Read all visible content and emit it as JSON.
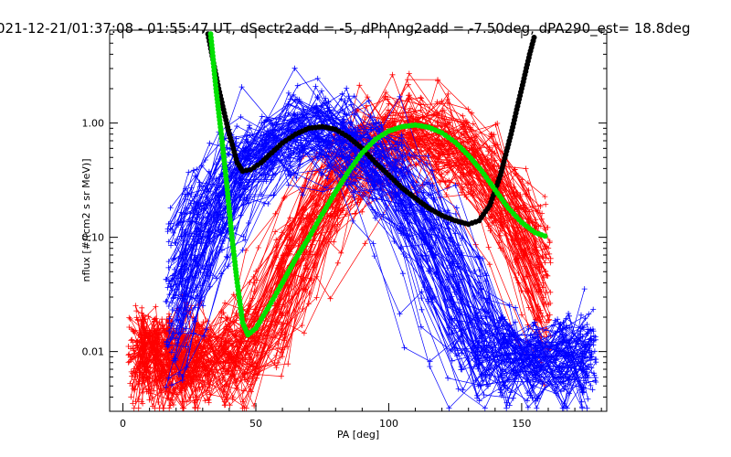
{
  "chart_data": {
    "type": "line",
    "title": "021-12-21/01:37:08 - 01:55:47 UT, dSectr2add = -5, dPhAng2add = -7.50deg, dPA290_est=  18.8deg",
    "xlabel": "PA [deg]",
    "ylabel": "nflux [#/(cm2 s sr MeV)]",
    "xlim": [
      -5,
      182
    ],
    "ylim": [
      0.003,
      6.5
    ],
    "y_scale": "log",
    "grid": false,
    "x_ticks": [
      {
        "value": 0,
        "label": "0"
      },
      {
        "value": 50,
        "label": "50"
      },
      {
        "value": 100,
        "label": "100"
      },
      {
        "value": 150,
        "label": "150"
      }
    ],
    "y_ticks": [
      {
        "value": 0.01,
        "label": "0.01"
      },
      {
        "value": 0.1,
        "label": "0.10"
      },
      {
        "value": 1.0,
        "label": "1.00"
      }
    ],
    "colors": {
      "blue": "#0000ff",
      "red": "#ff0000",
      "black": "#000000",
      "green": "#00e000"
    },
    "series": [
      {
        "color": "black",
        "style": "thick-dots",
        "x": [
          32,
          36,
          40,
          43,
          45,
          48,
          52,
          56,
          60,
          65,
          70,
          75,
          80,
          85,
          90,
          95,
          100,
          105,
          110,
          115,
          120,
          125,
          130,
          134,
          138,
          142,
          146,
          150,
          153,
          155
        ],
        "y": [
          6.0,
          2.0,
          0.8,
          0.45,
          0.38,
          0.39,
          0.45,
          0.55,
          0.67,
          0.8,
          0.9,
          0.93,
          0.88,
          0.75,
          0.6,
          0.45,
          0.35,
          0.27,
          0.22,
          0.18,
          0.155,
          0.14,
          0.13,
          0.14,
          0.19,
          0.35,
          0.8,
          2.0,
          4.0,
          6.0
        ]
      },
      {
        "color": "green",
        "style": "thick-dots",
        "x": [
          33,
          35,
          37,
          39,
          41,
          43,
          45,
          47,
          50,
          55,
          60,
          65,
          70,
          75,
          80,
          85,
          90,
          95,
          100,
          105,
          110,
          115,
          120,
          125,
          130,
          135,
          140,
          145,
          150,
          155,
          160
        ],
        "y": [
          6.0,
          2.0,
          0.8,
          0.3,
          0.1,
          0.04,
          0.018,
          0.014,
          0.016,
          0.025,
          0.04,
          0.065,
          0.1,
          0.16,
          0.25,
          0.38,
          0.55,
          0.72,
          0.85,
          0.93,
          0.96,
          0.92,
          0.82,
          0.68,
          0.52,
          0.38,
          0.26,
          0.18,
          0.135,
          0.11,
          0.1
        ]
      }
    ],
    "blue_traces": "many noisy blue traces with '+' markers peaking near PA ~70 deg (~1.0) and falling to ~0.005 at 20 and 175 deg",
    "red_traces": "many noisy red traces with '+' markers peaking near PA ~110 deg (~1.0) and falling to ~0.005 at 5 and 160 deg"
  }
}
